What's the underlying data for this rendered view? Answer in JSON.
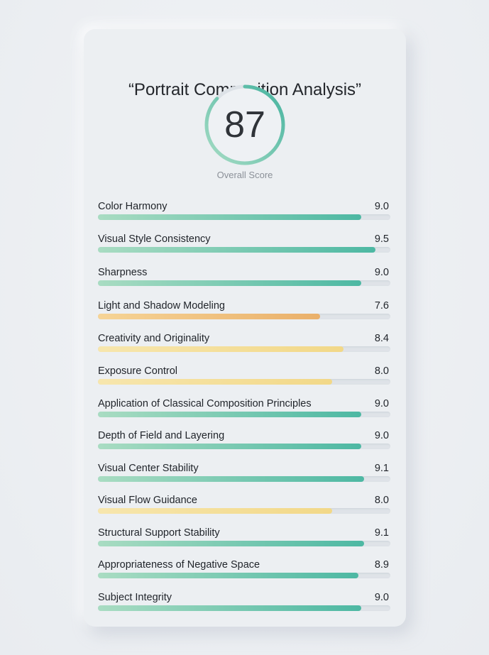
{
  "title": "“Portrait Composition Analysis”",
  "overall": {
    "score": "87",
    "fraction": 0.87,
    "label": "Overall Score"
  },
  "colors": {
    "green": "#4db8a3",
    "orange": "#eab06a",
    "yellow": "#f2d888"
  },
  "metrics": [
    {
      "label": "Color Harmony",
      "value": "9.0",
      "score": 9.0,
      "tone": "green"
    },
    {
      "label": "Visual Style Consistency",
      "value": "9.5",
      "score": 9.5,
      "tone": "green"
    },
    {
      "label": "Sharpness",
      "value": "9.0",
      "score": 9.0,
      "tone": "green"
    },
    {
      "label": "Light and Shadow Modeling",
      "value": "7.6",
      "score": 7.6,
      "tone": "orange"
    },
    {
      "label": "Creativity and Originality",
      "value": "8.4",
      "score": 8.4,
      "tone": "yellow"
    },
    {
      "label": "Exposure Control",
      "value": "8.0",
      "score": 8.0,
      "tone": "yellow"
    },
    {
      "label": "Application of Classical Composition Principles",
      "value": "9.0",
      "score": 9.0,
      "tone": "green"
    },
    {
      "label": "Depth of Field and Layering",
      "value": "9.0",
      "score": 9.0,
      "tone": "green"
    },
    {
      "label": "Visual Center Stability",
      "value": "9.1",
      "score": 9.1,
      "tone": "green"
    },
    {
      "label": "Visual Flow Guidance",
      "value": "8.0",
      "score": 8.0,
      "tone": "yellow"
    },
    {
      "label": "Structural Support Stability",
      "value": "9.1",
      "score": 9.1,
      "tone": "green"
    },
    {
      "label": "Appropriateness of Negative Space",
      "value": "8.9",
      "score": 8.9,
      "tone": "green"
    },
    {
      "label": "Subject Integrity",
      "value": "9.0",
      "score": 9.0,
      "tone": "green"
    }
  ]
}
